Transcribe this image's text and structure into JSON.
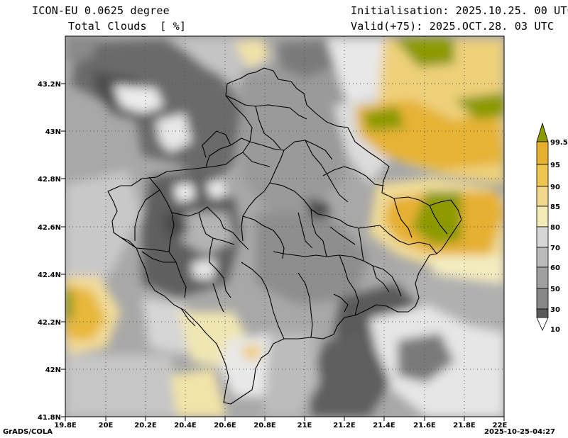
{
  "header": {
    "model": "ICON-EU 0.0625 degree",
    "field": "Total Clouds  [ %]",
    "init": "Initialisation: 2025.10.25. 00 UTC",
    "valid": "Valid(+75): 2025.OCT.28. 03 UTC"
  },
  "footer": {
    "left": "GrADS/COLA",
    "right": "2025-10-25-04:27"
  },
  "map": {
    "lat_labels": [
      "43.2N",
      "43N",
      "42.8N",
      "42.6N",
      "42.4N",
      "42.2N",
      "42N",
      "41.8N"
    ],
    "lon_labels": [
      "19.8E",
      "20E",
      "20.2E",
      "20.4E",
      "20.6E",
      "20.8E",
      "21E",
      "21.2E",
      "21.4E",
      "21.6E",
      "21.8E",
      "22E"
    ]
  },
  "legend": {
    "labels": [
      "99.5",
      "95",
      "90",
      "85",
      "80",
      "70",
      "60",
      "50",
      "30",
      "10"
    ],
    "colors": [
      "#8c9a00",
      "#e6b030",
      "#eec550",
      "#f2d88c",
      "#f4eab8",
      "#d6d6d6",
      "#bababa",
      "#a0a0a0",
      "#878787",
      "#5a5a5a",
      "#ffffff"
    ]
  }
}
